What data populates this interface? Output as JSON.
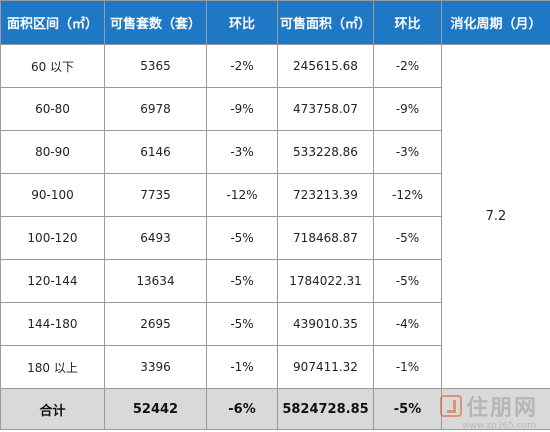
{
  "headers": [
    "面积区间（㎡）",
    "可售套数（套）",
    "环比",
    "可售面积（㎡）",
    "环比",
    "消化周期（月）"
  ],
  "rows": [
    {
      "range": "60 以下",
      "units": "5365",
      "units_mom": "-2%",
      "area": "245615.68",
      "area_mom": "-2%"
    },
    {
      "range": "60-80",
      "units": "6978",
      "units_mom": "-9%",
      "area": "473758.07",
      "area_mom": "-9%"
    },
    {
      "range": "80-90",
      "units": "6146",
      "units_mom": "-3%",
      "area": "533228.86",
      "area_mom": "-3%"
    },
    {
      "range": "90-100",
      "units": "7735",
      "units_mom": "-12%",
      "area": "723213.39",
      "area_mom": "-12%"
    },
    {
      "range": "100-120",
      "units": "6493",
      "units_mom": "-5%",
      "area": "718468.87",
      "area_mom": "-5%"
    },
    {
      "range": "120-144",
      "units": "13634",
      "units_mom": "-5%",
      "area": "1784022.31",
      "area_mom": "-5%"
    },
    {
      "range": "144-180",
      "units": "2695",
      "units_mom": "-5%",
      "area": "439010.35",
      "area_mom": "-4%"
    },
    {
      "range": "180 以上",
      "units": "3396",
      "units_mom": "-1%",
      "area": "907411.32",
      "area_mom": "-1%"
    }
  ],
  "digestion_period": "7.2",
  "total": {
    "label": "合计",
    "units": "52442",
    "units_mom": "-6%",
    "area": "5824728.85",
    "area_mom": "-5%"
  },
  "watermark": {
    "brand": "住朋网",
    "url": "www.zp365.com"
  }
}
